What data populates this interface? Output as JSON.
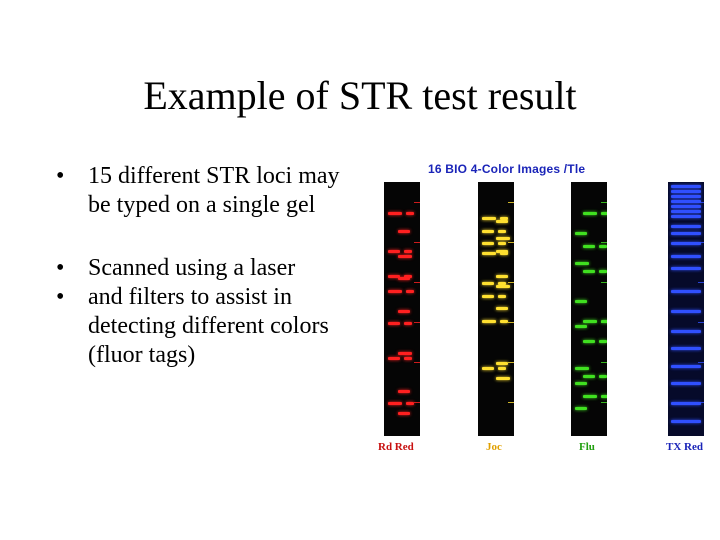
{
  "slide": {
    "title": "Example of STR test result",
    "bullets": [
      "15 different STR loci may be typed on a single gel",
      "Scanned using  a laser",
      "and filters to assist in detecting different colors (fluor tags)"
    ],
    "bullet_symbol": "•"
  },
  "figure": {
    "caption": "16 BIO 4-Color Images /Tle",
    "caption_color": "#1a24b8",
    "lanes": [
      {
        "label": "Rd Red",
        "label_color": "#c81010",
        "band_color": "#ff2020",
        "bands": [
          0.12,
          0.19,
          0.27,
          0.29,
          0.37,
          0.38,
          0.43,
          0.51,
          0.56,
          0.68,
          0.7,
          0.83,
          0.88,
          0.92
        ]
      },
      {
        "label": "Joc",
        "label_color": "#e0a000",
        "band_color": "#ffe030",
        "bands": [
          0.14,
          0.15,
          0.19,
          0.22,
          0.24,
          0.27,
          0.28,
          0.37,
          0.4,
          0.41,
          0.45,
          0.5,
          0.55,
          0.72,
          0.74,
          0.78
        ]
      },
      {
        "label": "Flu",
        "label_color": "#22a010",
        "band_color": "#40e020",
        "bands": [
          0.12,
          0.2,
          0.25,
          0.32,
          0.35,
          0.47,
          0.55,
          0.57,
          0.63,
          0.74,
          0.77,
          0.8,
          0.85,
          0.9
        ]
      },
      {
        "label": "TX Red",
        "label_color": "#1a24b8",
        "band_color": "#3050ff",
        "bands": [
          0.01,
          0.03,
          0.05,
          0.07,
          0.09,
          0.11,
          0.13,
          0.17,
          0.2,
          0.24,
          0.29,
          0.34,
          0.43,
          0.51,
          0.59,
          0.66,
          0.73,
          0.8,
          0.88,
          0.95
        ]
      }
    ]
  }
}
